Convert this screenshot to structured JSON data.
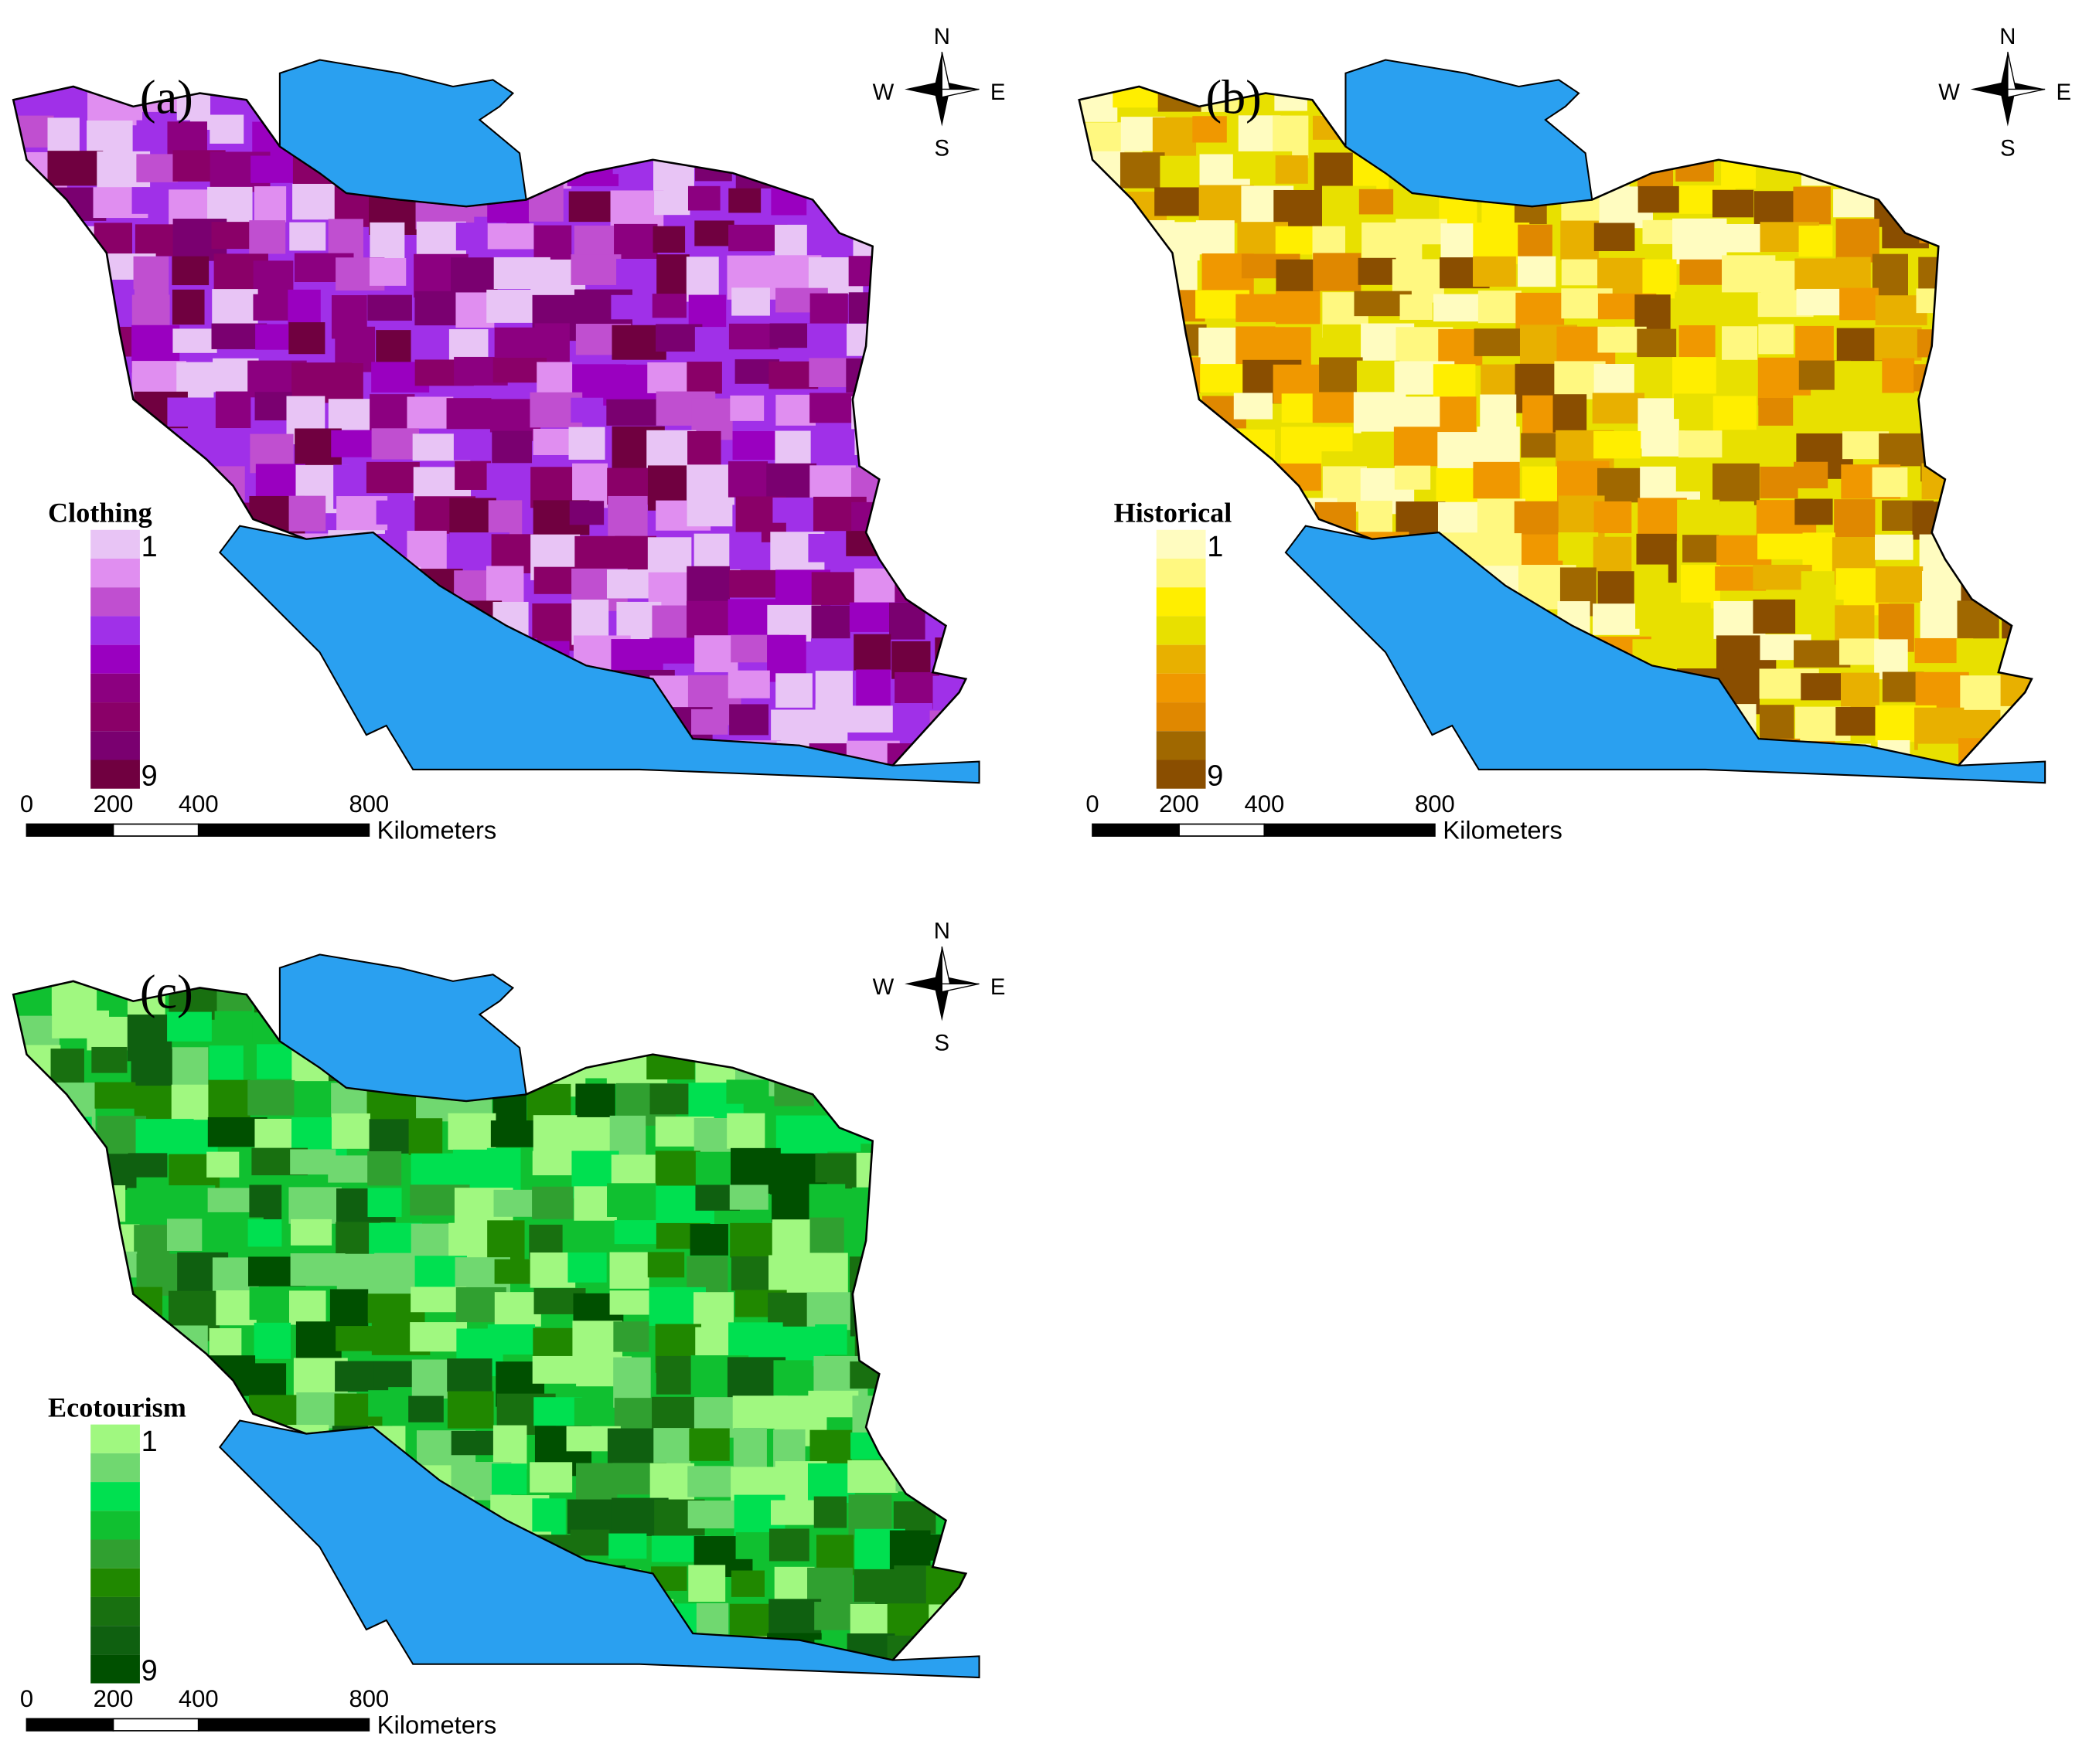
{
  "panels": [
    {
      "label": "(a)",
      "legend_title": "Clothing",
      "legend_min": "1",
      "legend_max": "9",
      "legend_colors": [
        "#e8c4f5",
        "#e08ef0",
        "#c04fd0",
        "#a030e8",
        "#9a00c0",
        "#8c0080",
        "#8a0068",
        "#7a0070",
        "#700040"
      ],
      "scale_ticks": [
        "0",
        "200",
        "400",
        "800"
      ],
      "scale_unit": "Kilometers",
      "compass": {
        "n": "N",
        "s": "S",
        "w": "W",
        "e": "E"
      }
    },
    {
      "label": "(b)",
      "legend_title": "Historical",
      "legend_min": "1",
      "legend_max": "9",
      "legend_colors": [
        "#fffcc0",
        "#fff880",
        "#ffee00",
        "#e8e000",
        "#e8b000",
        "#f09800",
        "#e08800",
        "#a06800",
        "#8a4e00"
      ],
      "scale_ticks": [
        "0",
        "200",
        "400",
        "800"
      ],
      "scale_unit": "Kilometers",
      "compass": {
        "n": "N",
        "s": "S",
        "w": "W",
        "e": "E"
      }
    },
    {
      "label": "(c)",
      "legend_title": "Ecotourism",
      "legend_min": "1",
      "legend_max": "9",
      "legend_colors": [
        "#a0f880",
        "#70d870",
        "#00e050",
        "#10c030",
        "#30a030",
        "#208800",
        "#187010",
        "#0f6010",
        "#005000"
      ],
      "scale_ticks": [
        "0",
        "200",
        "400",
        "800"
      ],
      "scale_unit": "Kilometers",
      "compass": {
        "n": "N",
        "s": "S",
        "w": "W",
        "e": "E"
      }
    }
  ]
}
